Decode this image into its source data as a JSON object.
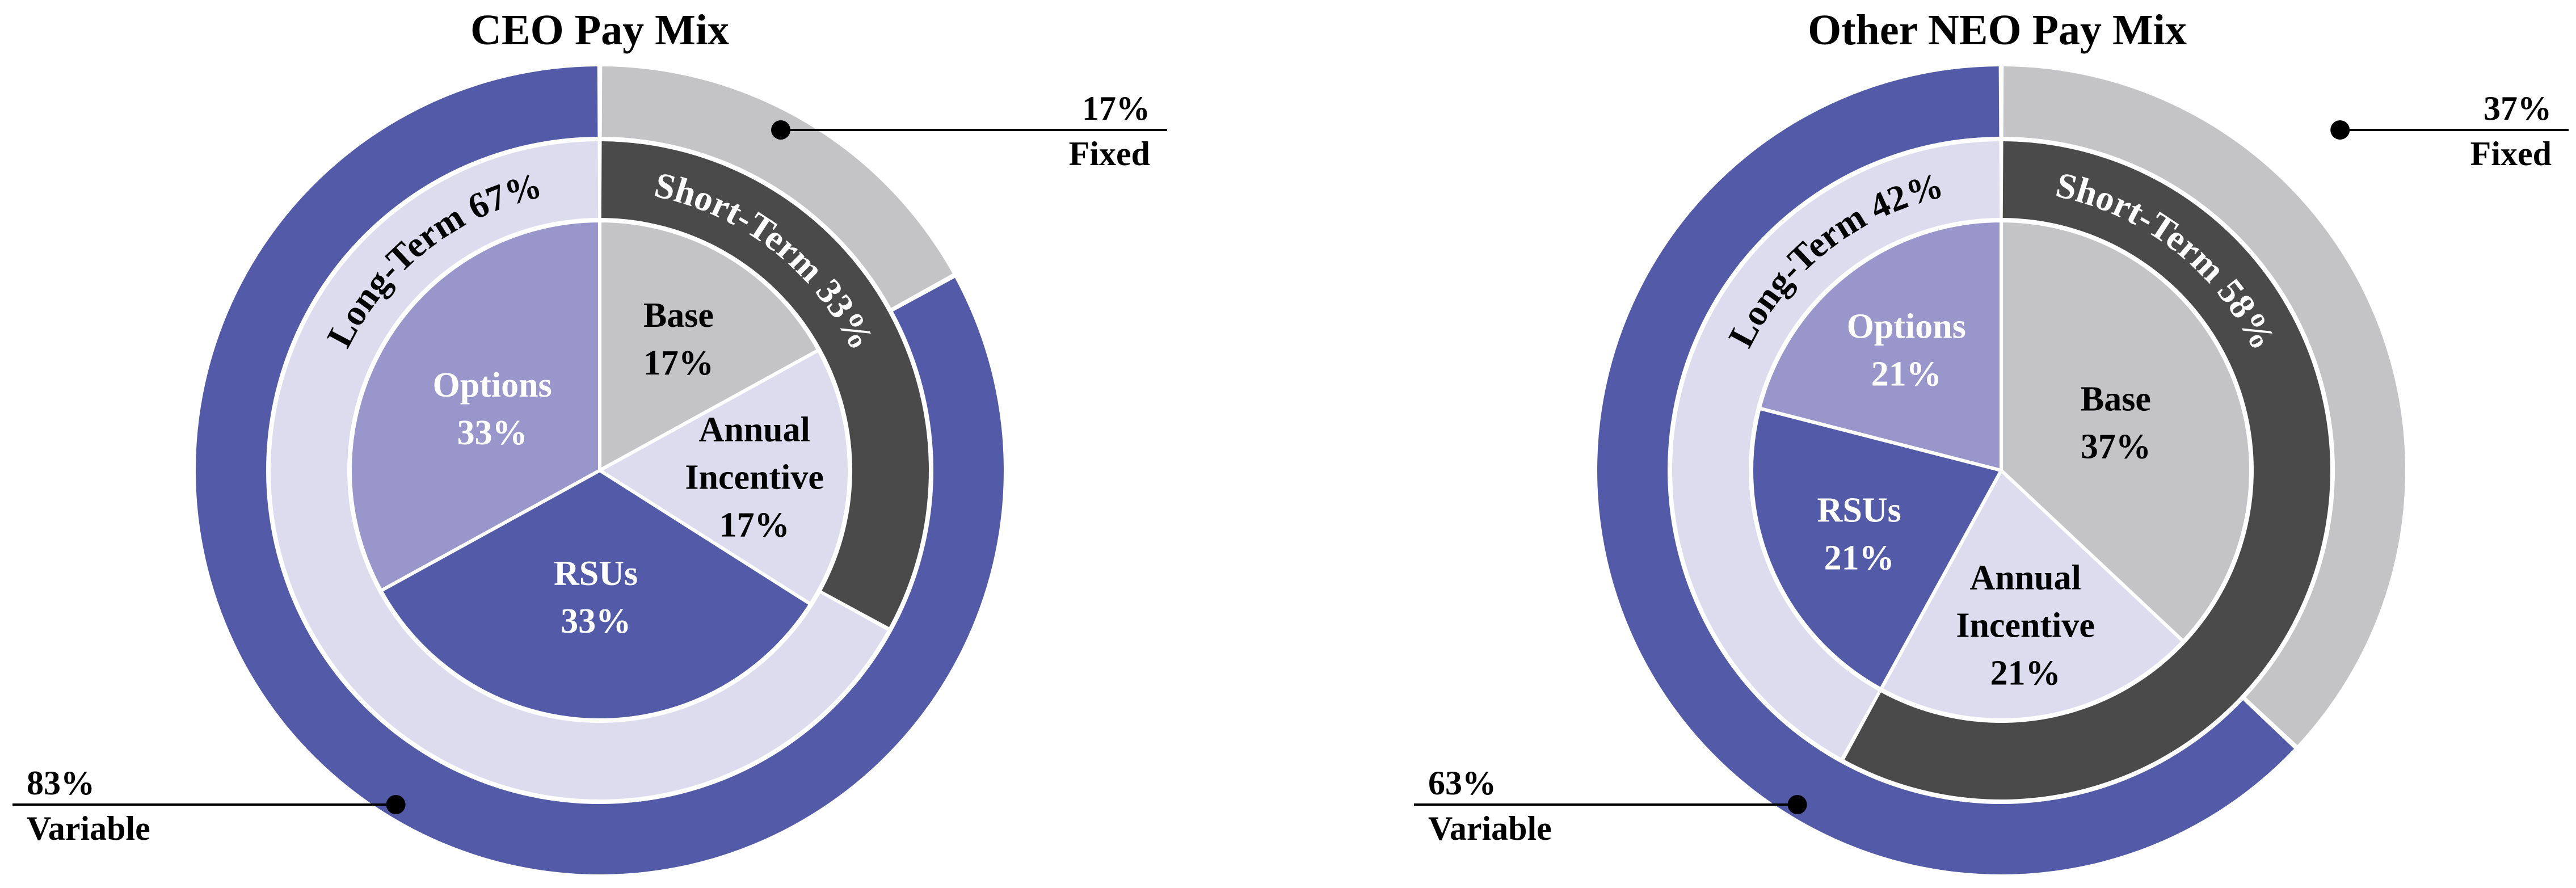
{
  "chart_data": [
    {
      "type": "pie",
      "title": "CEO Pay Mix",
      "outer_ring": [
        {
          "label": "Fixed",
          "value": 17,
          "value_label": "17%",
          "color": "#c4c4c6"
        },
        {
          "label": "Variable",
          "value": 83,
          "value_label": "83%",
          "color": "#535ba8"
        }
      ],
      "middle_ring": [
        {
          "label": "Short-Term 33%",
          "value": 33,
          "color": "#4a4a4b"
        },
        {
          "label": "Long-Term 67%",
          "value": 67,
          "color": "#dcdcee"
        }
      ],
      "inner_pie": [
        {
          "label": "Base",
          "value": 17,
          "value_label": "17%",
          "color": "#c4c4c6",
          "text_color": "#000000"
        },
        {
          "label": "Annual Incentive",
          "value": 17,
          "value_label": "17%",
          "color": "#dcdcee",
          "text_color": "#000000"
        },
        {
          "label": "RSUs",
          "value": 33,
          "value_label": "33%",
          "color": "#535ba8",
          "text_color": "#ffffff"
        },
        {
          "label": "Options",
          "value": 33,
          "value_label": "33%",
          "color": "#9896ca",
          "text_color": "#ffffff"
        }
      ]
    },
    {
      "type": "pie",
      "title": "Other NEO Pay Mix",
      "outer_ring": [
        {
          "label": "Fixed",
          "value": 37,
          "value_label": "37%",
          "color": "#c4c4c6"
        },
        {
          "label": "Variable",
          "value": 63,
          "value_label": "63%",
          "color": "#535ba8"
        }
      ],
      "middle_ring": [
        {
          "label": "Short-Term 58%",
          "value": 58,
          "color": "#4a4a4b"
        },
        {
          "label": "Long-Term 42%",
          "value": 42,
          "color": "#dcdcee"
        }
      ],
      "inner_pie": [
        {
          "label": "Base",
          "value": 37,
          "value_label": "37%",
          "color": "#c4c4c6",
          "text_color": "#000000"
        },
        {
          "label": "Annual Incentive",
          "value": 21,
          "value_label": "21%",
          "color": "#dcdcee",
          "text_color": "#000000"
        },
        {
          "label": "RSUs",
          "value": 21,
          "value_label": "21%",
          "color": "#535ba8",
          "text_color": "#ffffff"
        },
        {
          "label": "Options",
          "value": 21,
          "value_label": "21%",
          "color": "#9896ca",
          "text_color": "#ffffff"
        }
      ]
    }
  ]
}
